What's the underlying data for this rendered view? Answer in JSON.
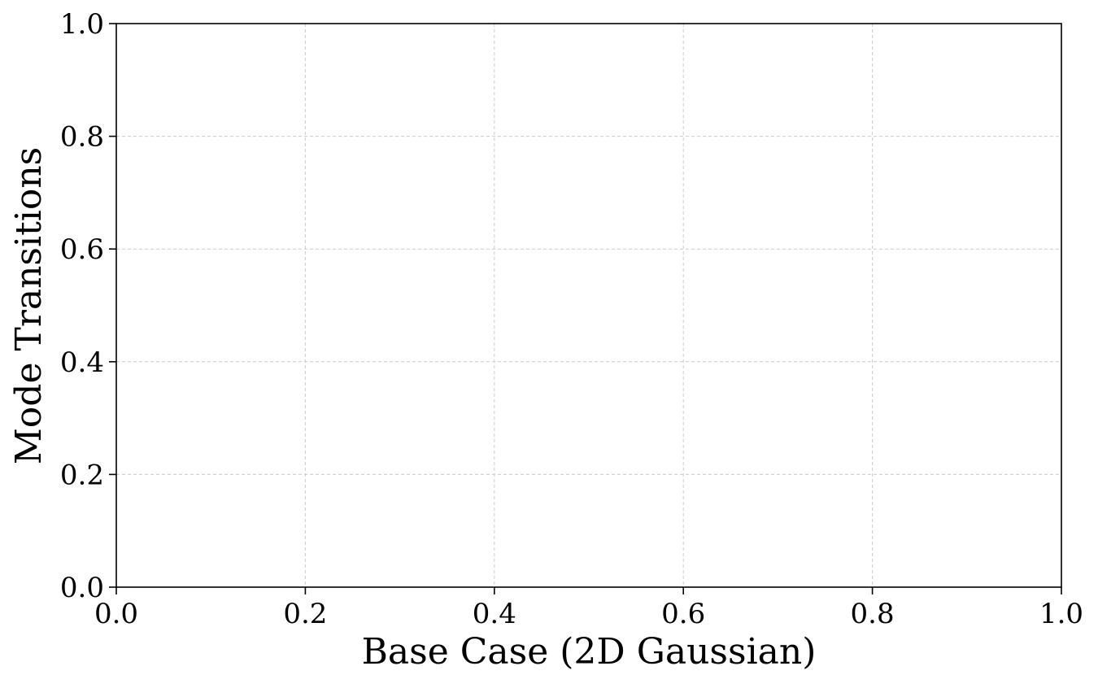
{
  "chart_data": {
    "type": "scatter",
    "title": "",
    "xlabel": "Base Case (2D Gaussian)",
    "ylabel": "Mode Transitions",
    "xlim": [
      0.0,
      1.0
    ],
    "ylim": [
      0.0,
      1.0
    ],
    "x_ticks": [
      "0.0",
      "0.2",
      "0.4",
      "0.6",
      "0.8",
      "1.0"
    ],
    "y_ticks": [
      "0.0",
      "0.2",
      "0.4",
      "0.6",
      "0.8",
      "1.0"
    ],
    "grid": true,
    "grid_color": "#cccccc",
    "axis_color": "#000000",
    "background": "#ffffff",
    "series": []
  }
}
